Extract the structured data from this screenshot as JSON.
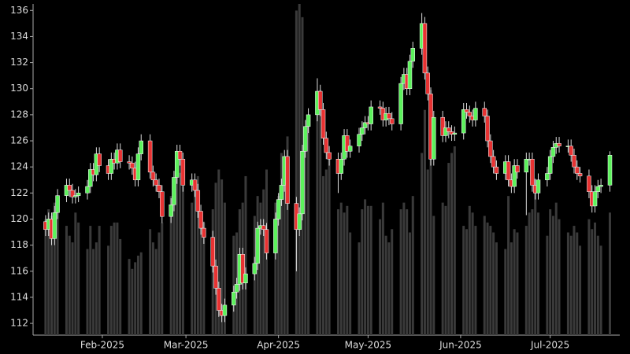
{
  "chart_data": {
    "type": "candlestick",
    "x": [
      13,
      14,
      15,
      16,
      17,
      20,
      21,
      22,
      23,
      24,
      27,
      28,
      29,
      30,
      31,
      34,
      35,
      36,
      37,
      38,
      41,
      42,
      43,
      44,
      45,
      48,
      49,
      50,
      51,
      52,
      55,
      56,
      57,
      58,
      59,
      62,
      63,
      64,
      65,
      66,
      69,
      70,
      71,
      72,
      73,
      76,
      77,
      78,
      79,
      80,
      83,
      84,
      85,
      86,
      87,
      90,
      91,
      92,
      93,
      94,
      97,
      98,
      99,
      100,
      101,
      104,
      105,
      106,
      107,
      108,
      111,
      112,
      113,
      114,
      115,
      118,
      119,
      120,
      121,
      122,
      125,
      126,
      127,
      128,
      129,
      132,
      133,
      134,
      135,
      136,
      139,
      140,
      141,
      142,
      143,
      146,
      147,
      148,
      149,
      150,
      153,
      154,
      155,
      156,
      157,
      160,
      161,
      162,
      163,
      164,
      167,
      168,
      169,
      170,
      171,
      174,
      175,
      176,
      177,
      178,
      181,
      182,
      183,
      184,
      185,
      188,
      189,
      190,
      191,
      192,
      195,
      196,
      197,
      198,
      199,
      202
    ],
    "open": [
      119.8,
      119.2,
      120,
      118.5,
      120.5,
      121.8,
      122.6,
      122.2,
      121.7,
      121.8,
      122.0,
      122.5,
      123.8,
      123.4,
      125.0,
      124.1,
      123.5,
      124.6,
      124.3,
      125.3,
      124.4,
      124.3,
      123.9,
      123.0,
      125.0,
      126.0,
      123.6,
      123.0,
      122.6,
      122.1,
      120.2,
      121.1,
      123.2,
      125.2,
      124.6,
      122.6,
      123.0,
      122.2,
      120.6,
      119.3,
      118.6,
      116.4,
      114.7,
      113.0,
      112.6,
      113.4,
      114.4,
      115.0,
      117.3,
      115.1,
      115.8,
      116.6,
      119.3,
      119.5,
      119.2,
      117.4,
      120.0,
      121.5,
      122.6,
      124.8,
      121.2,
      119.2,
      120.4,
      125.2,
      127.1,
      128.0,
      129.8,
      128.4,
      126.2,
      125.1,
      124.6,
      123.5,
      124.6,
      126.4,
      125.2,
      125.6,
      126.5,
      127.0,
      127.4,
      127.3,
      128.6,
      128.5,
      127.6,
      128.1,
      127.7,
      127.3,
      130.4,
      131.1,
      130.0,
      132.1,
      133.1,
      135.0,
      131.2,
      129.6,
      124.6,
      127.8,
      126.4,
      127.0,
      126.7,
      126.5,
      126.6,
      128.4,
      128.2,
      127.9,
      127.6,
      128.5,
      127.9,
      126.0,
      124.8,
      124.0,
      123.5,
      124.4,
      123.0,
      122.5,
      124.1,
      123.6,
      124.6,
      124.6,
      122.6,
      122.0,
      123.0,
      123.5,
      124.8,
      125.5,
      125.8,
      125.6,
      125.6,
      124.9,
      124.0,
      123.5,
      123.3,
      122.1,
      121.0,
      122.1,
      122.5,
      122.6
    ],
    "high": [
      120.3,
      120.5,
      120.5,
      121.0,
      122.3,
      123.1,
      123.1,
      122.7,
      122.3,
      122.5,
      123.0,
      124.3,
      124.3,
      125.5,
      125.5,
      124.6,
      125.1,
      125.1,
      125.8,
      125.8,
      124.9,
      124.8,
      124.4,
      125.5,
      126.5,
      126.5,
      124.1,
      123.5,
      123.1,
      122.6,
      121.6,
      123.7,
      125.7,
      125.7,
      125.1,
      123.5,
      123.5,
      122.7,
      121.1,
      119.8,
      119.1,
      116.9,
      115.2,
      113.5,
      113.9,
      114.9,
      115.5,
      117.8,
      117.8,
      116.3,
      117.1,
      119.8,
      120.0,
      120.0,
      119.7,
      120.5,
      122.0,
      123.1,
      125.3,
      125.3,
      121.7,
      120.9,
      125.7,
      127.6,
      128.5,
      130.8,
      130.3,
      128.9,
      126.7,
      125.6,
      125.1,
      125.1,
      126.9,
      126.9,
      126.1,
      127.0,
      127.5,
      127.9,
      127.9,
      129.1,
      129.1,
      129.0,
      128.6,
      128.6,
      128.2,
      130.9,
      131.6,
      131.6,
      132.6,
      133.6,
      135.8,
      135.5,
      131.7,
      130.1,
      128.3,
      128.3,
      127.5,
      127.5,
      127.2,
      127.1,
      128.9,
      128.9,
      128.7,
      128.4,
      129.0,
      129.0,
      128.4,
      126.5,
      125.3,
      124.5,
      124.9,
      124.9,
      123.5,
      124.6,
      124.6,
      125.1,
      125.1,
      125.1,
      123.1,
      123.5,
      124.0,
      125.3,
      126.0,
      126.3,
      126.3,
      126.1,
      126.1,
      125.4,
      124.5,
      124.0,
      123.8,
      122.6,
      122.6,
      123.0,
      123.1,
      125.2
    ],
    "low": [
      118.7,
      118.7,
      118.0,
      118.0,
      120.0,
      121.3,
      121.7,
      121.2,
      121.2,
      121.3,
      121.5,
      122.0,
      122.9,
      122.9,
      123.6,
      123.0,
      123.0,
      123.8,
      123.8,
      123.9,
      123.8,
      123.4,
      122.5,
      122.5,
      124.5,
      123.1,
      122.5,
      122.1,
      121.6,
      119.7,
      119.7,
      120.6,
      122.7,
      124.1,
      122.1,
      122.1,
      121.7,
      120.1,
      118.8,
      118.1,
      115.9,
      114.2,
      112.5,
      112.1,
      112.1,
      112.9,
      113.9,
      114.5,
      114.6,
      114.6,
      115.3,
      116.1,
      118.8,
      118.7,
      116.9,
      116.9,
      119.5,
      121.0,
      122.1,
      120.7,
      116.0,
      118.7,
      119.9,
      124.7,
      126.6,
      127.5,
      127.9,
      125.7,
      124.6,
      124.1,
      122.0,
      123.0,
      124.1,
      124.7,
      124.7,
      125.1,
      126.0,
      126.5,
      126.8,
      126.8,
      128.0,
      127.1,
      127.1,
      127.2,
      126.8,
      126.8,
      129.9,
      129.5,
      129.5,
      131.6,
      132.6,
      130.7,
      129.1,
      124.1,
      124.1,
      125.9,
      125.9,
      126.2,
      126.0,
      126.0,
      126.1,
      127.7,
      127.4,
      127.1,
      127.1,
      127.4,
      125.5,
      124.3,
      123.5,
      123.0,
      123.0,
      122.5,
      122.0,
      122.0,
      123.1,
      120.3,
      124.1,
      122.1,
      121.5,
      121.5,
      122.5,
      123.0,
      124.3,
      125.0,
      125.1,
      125.1,
      124.4,
      123.5,
      123.0,
      122.8,
      121.6,
      120.5,
      120.5,
      121.6,
      122.0,
      122.1
    ],
    "close": [
      119.2,
      120,
      118.5,
      120.5,
      121.8,
      122.6,
      122.2,
      121.7,
      121.8,
      122.0,
      122.5,
      123.8,
      123.4,
      125.0,
      124.1,
      123.5,
      124.6,
      124.3,
      125.3,
      124.4,
      124.3,
      123.9,
      123.0,
      125.0,
      126.0,
      123.6,
      123.0,
      122.6,
      122.1,
      120.2,
      121.1,
      123.2,
      125.2,
      124.6,
      122.6,
      123.0,
      122.2,
      120.6,
      119.3,
      118.6,
      116.4,
      114.7,
      113.0,
      112.6,
      113.4,
      114.4,
      115.0,
      117.3,
      115.1,
      115.8,
      116.6,
      119.3,
      119.5,
      119.2,
      117.4,
      120.0,
      121.5,
      122.6,
      124.8,
      121.2,
      119.2,
      120.4,
      125.2,
      127.1,
      128.0,
      129.8,
      128.4,
      126.2,
      125.1,
      124.6,
      123.5,
      124.6,
      126.4,
      125.2,
      125.6,
      126.5,
      127.0,
      127.4,
      127.3,
      128.6,
      128.5,
      127.6,
      128.1,
      127.7,
      127.3,
      130.4,
      131.1,
      130.0,
      132.1,
      133.1,
      135.0,
      131.2,
      129.6,
      124.6,
      127.8,
      126.4,
      127.0,
      126.7,
      126.5,
      126.6,
      128.4,
      128.2,
      127.9,
      127.6,
      128.5,
      127.9,
      126.0,
      124.8,
      124.0,
      123.5,
      124.4,
      123.0,
      122.5,
      124.1,
      123.6,
      124.6,
      124.6,
      122.6,
      122.0,
      123.0,
      123.5,
      124.8,
      125.5,
      125.8,
      125.6,
      125.6,
      124.9,
      124.0,
      123.5,
      123.3,
      122.1,
      121.0,
      122.1,
      122.5,
      122.6,
      124.9
    ],
    "volume": [
      35,
      38,
      36,
      40,
      38,
      33,
      30,
      28,
      37,
      34,
      26,
      33,
      26,
      28,
      33,
      27,
      33,
      34,
      34,
      29,
      23,
      20,
      22,
      24,
      25,
      32,
      28,
      26,
      31,
      34,
      42,
      41,
      50,
      49,
      45,
      40,
      44,
      48,
      37,
      34,
      38,
      46,
      50,
      47,
      40,
      30,
      31,
      38,
      40,
      48,
      36,
      42,
      40,
      44,
      50,
      40,
      42,
      55,
      47,
      60,
      98,
      100,
      96,
      58,
      63,
      68,
      74,
      48,
      50,
      55,
      38,
      40,
      37,
      39,
      31,
      28,
      38,
      41,
      39,
      39,
      35,
      40,
      30,
      28,
      32,
      38,
      40,
      38,
      31,
      42,
      55,
      68,
      50,
      74,
      36,
      40,
      39,
      52,
      55,
      57,
      33,
      32,
      39,
      37,
      33,
      36,
      34,
      33,
      31,
      28,
      26,
      42,
      28,
      32,
      31,
      33,
      37,
      38,
      47,
      37,
      30,
      38,
      36,
      40,
      35,
      31,
      30,
      33,
      31,
      27,
      35,
      32,
      34,
      30,
      27,
      37
    ],
    "up_color": "#5cf25c",
    "down_color": "#e83232",
    "volume_color": "#3a3a3a",
    "xlim": [
      8.8,
      205.3
    ],
    "xticks": [
      {
        "value": 32,
        "label": "Feb-2025"
      },
      {
        "value": 60,
        "label": "Mar-2025"
      },
      {
        "value": 91,
        "label": "Apr-2025"
      },
      {
        "value": 121,
        "label": "May-2025"
      },
      {
        "value": 152,
        "label": "Jun-2025"
      },
      {
        "value": 182,
        "label": "Jul-2025"
      }
    ],
    "ylim": [
      111.1,
      136.5
    ],
    "yticks": [
      112,
      114,
      116,
      118,
      120,
      122,
      124,
      126,
      128,
      130,
      132,
      134,
      136
    ],
    "vlim": [
      0,
      100
    ]
  }
}
